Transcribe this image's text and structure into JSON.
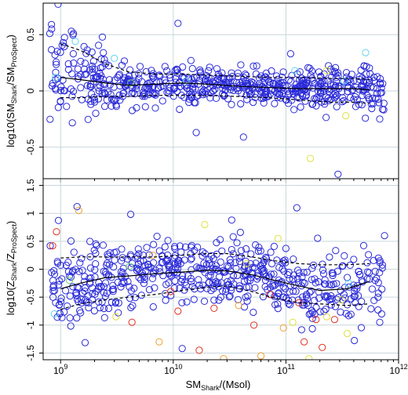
{
  "chart_data": [
    {
      "type": "scatter",
      "panel": "top",
      "ylabel": "log10(SM_Shark/SM_ProSpect)",
      "ylabel_parts": {
        "prefix": "log10(SM",
        "sub1": "Shark",
        "mid": "/SM",
        "sub2": "ProSpect",
        "suffix": ")"
      },
      "xlim": [
        700000000.0,
        1000000000000.0
      ],
      "ylim": [
        -0.78,
        0.78
      ],
      "xscale": "log",
      "yticks": [
        -0.5,
        0,
        0.5
      ],
      "ytick_labels": [
        "-0.5",
        "0",
        "0.5"
      ],
      "grid": true,
      "median_line": {
        "x": [
          1000000000.0,
          1500000000.0,
          2500000000.0,
          4000000000.0,
          7000000000.0,
          12000000000.0,
          20000000000.0,
          40000000000.0,
          70000000000.0,
          130000000000.0,
          250000000000.0,
          400000000000.0,
          550000000000.0
        ],
        "y": [
          0.12,
          0.1,
          0.07,
          0.05,
          0.06,
          0.07,
          0.06,
          0.04,
          0.03,
          0.02,
          0.02,
          0.02,
          0.01
        ]
      },
      "upper_line": {
        "x": [
          1000000000.0,
          1500000000.0,
          2500000000.0,
          4000000000.0,
          7000000000.0,
          12000000000.0,
          20000000000.0,
          40000000000.0,
          70000000000.0,
          130000000000.0,
          250000000000.0,
          400000000000.0,
          550000000000.0
        ],
        "y": [
          0.42,
          0.36,
          0.24,
          0.17,
          0.15,
          0.15,
          0.14,
          0.13,
          0.12,
          0.12,
          0.11,
          0.11,
          0.1
        ]
      },
      "lower_line": {
        "x": [
          1000000000.0,
          1500000000.0,
          2500000000.0,
          4000000000.0,
          7000000000.0,
          12000000000.0,
          20000000000.0,
          40000000000.0,
          70000000000.0,
          130000000000.0,
          250000000000.0,
          400000000000.0,
          550000000000.0
        ],
        "y": [
          -0.06,
          -0.06,
          -0.05,
          -0.05,
          -0.04,
          -0.04,
          -0.04,
          -0.05,
          -0.06,
          -0.08,
          -0.1,
          -0.1,
          -0.11
        ]
      },
      "highlight_points": [
        {
          "x": 1350000000.0,
          "y": 0.44,
          "c": "cyan"
        },
        {
          "x": 3000000000.0,
          "y": 0.29,
          "c": "cyan"
        },
        {
          "x": 4200000000.0,
          "y": 0.07,
          "c": "green"
        },
        {
          "x": 13000000000.0,
          "y": 0.09,
          "c": "cyan"
        },
        {
          "x": 120000000000.0,
          "y": 0.18,
          "c": "cyan"
        },
        {
          "x": 230000000000.0,
          "y": 0.18,
          "c": "yellow"
        },
        {
          "x": 330000000000.0,
          "y": 0.09,
          "c": "cyan"
        },
        {
          "x": 340000000000.0,
          "y": -0.22,
          "c": "yellow"
        },
        {
          "x": 510000000000.0,
          "y": 0.34,
          "c": "cyan"
        },
        {
          "x": 165000000000.0,
          "y": -0.6,
          "c": "yellow"
        },
        {
          "x": 900000000.0,
          "y": 0.12,
          "c": "cyan"
        }
      ],
      "extreme_points": [
        {
          "x": 830000000.0,
          "y": 0.59
        },
        {
          "x": 950000000.0,
          "y": 0.77
        },
        {
          "x": 1300000000.0,
          "y": 0.51
        },
        {
          "x": 11000000000.0,
          "y": 0.6
        },
        {
          "x": 16000000000.0,
          "y": -0.37
        },
        {
          "x": 42000000000.0,
          "y": -0.41
        },
        {
          "x": 110000000000.0,
          "y": 0.33
        },
        {
          "x": 290000000000.0,
          "y": -0.74
        },
        {
          "x": 680000000000.0,
          "y": -0.25
        }
      ]
    },
    {
      "type": "scatter",
      "panel": "bottom",
      "ylabel": "log10(Z_Shark/Z_ProSpect)",
      "ylabel_parts": {
        "prefix": "log10(Z",
        "sub1": "Shark",
        "mid": "/Z",
        "sub2": "ProSpect",
        "suffix": ")"
      },
      "xlabel": "SM_Shark/(Msol)",
      "xlabel_parts": {
        "prefix": "SM",
        "sub1": "Shark",
        "suffix": "/(Msol)"
      },
      "xlim": [
        700000000.0,
        1000000000000.0
      ],
      "ylim": [
        -1.62,
        1.62
      ],
      "xscale": "log",
      "yticks": [
        -1.5,
        -1,
        -0.5,
        0,
        0.5,
        1,
        1.5
      ],
      "ytick_labels": [
        "-1.5",
        "-1",
        "-0.5",
        "0",
        "0.5",
        "1",
        "1.5"
      ],
      "xticks": [
        1000000000.0,
        10000000000.0,
        100000000000.0,
        1000000000000.0
      ],
      "xtick_labels": [
        {
          "base": "10",
          "exp": "9"
        },
        {
          "base": "10",
          "exp": "10"
        },
        {
          "base": "10",
          "exp": "11"
        },
        {
          "base": "10",
          "exp": "12"
        }
      ],
      "grid": true,
      "median_line": {
        "x": [
          1000000000.0,
          1500000000.0,
          2500000000.0,
          4000000000.0,
          7000000000.0,
          12000000000.0,
          20000000000.0,
          30000000000.0,
          50000000000.0,
          80000000000.0,
          130000000000.0,
          200000000000.0,
          350000000000.0,
          550000000000.0
        ],
        "y": [
          -0.35,
          -0.25,
          -0.15,
          -0.12,
          -0.08,
          -0.05,
          -0.02,
          -0.03,
          -0.1,
          -0.2,
          -0.3,
          -0.38,
          -0.35,
          -0.22
        ]
      },
      "upper_line": {
        "x": [
          1000000000.0,
          1500000000.0,
          2500000000.0,
          4000000000.0,
          7000000000.0,
          12000000000.0,
          20000000000.0,
          30000000000.0,
          50000000000.0,
          80000000000.0,
          130000000000.0,
          200000000000.0,
          350000000000.0,
          550000000000.0
        ],
        "y": [
          0.2,
          0.22,
          0.22,
          0.22,
          0.22,
          0.25,
          0.28,
          0.28,
          0.22,
          0.15,
          0.1,
          0.08,
          0.08,
          0.1
        ]
      },
      "lower_line": {
        "x": [
          1000000000.0,
          1500000000.0,
          2500000000.0,
          4000000000.0,
          7000000000.0,
          12000000000.0,
          20000000000.0,
          30000000000.0,
          50000000000.0,
          80000000000.0,
          130000000000.0,
          200000000000.0,
          350000000000.0,
          550000000000.0
        ],
        "y": [
          -0.72,
          -0.62,
          -0.55,
          -0.5,
          -0.45,
          -0.38,
          -0.32,
          -0.3,
          -0.4,
          -0.52,
          -0.6,
          -0.62,
          -0.65,
          -0.62
        ]
      },
      "highlight_points": [
        {
          "x": 850000000.0,
          "y": 0.42,
          "c": "red"
        },
        {
          "x": 920000000.0,
          "y": 0.67,
          "c": "red"
        },
        {
          "x": 880000000.0,
          "y": -0.8,
          "c": "cyan"
        },
        {
          "x": 1450000000.0,
          "y": 1.05,
          "c": "orange"
        },
        {
          "x": 1200000000.0,
          "y": -0.2,
          "c": "green"
        },
        {
          "x": 3100000000.0,
          "y": -0.85,
          "c": "yellow"
        },
        {
          "x": 4100000000.0,
          "y": 0.05,
          "c": "green"
        },
        {
          "x": 4300000000.0,
          "y": -0.95,
          "c": "red"
        },
        {
          "x": 6600000000.0,
          "y": 0.25,
          "c": "orange"
        },
        {
          "x": 7500000000.0,
          "y": -1.3,
          "c": "orange"
        },
        {
          "x": 9500000000.0,
          "y": -0.4,
          "c": "red"
        },
        {
          "x": 11000000000.0,
          "y": -0.75,
          "c": "red"
        },
        {
          "x": 17000000000.0,
          "y": -1.45,
          "c": "red"
        },
        {
          "x": 19000000000.0,
          "y": 0.8,
          "c": "yellow"
        },
        {
          "x": 23000000000.0,
          "y": -0.7,
          "c": "red"
        },
        {
          "x": 28000000000.0,
          "y": -1.6,
          "c": "orange"
        },
        {
          "x": 38000000000.0,
          "y": -0.65,
          "c": "orange"
        },
        {
          "x": 45000000000.0,
          "y": 0.1,
          "c": "yellow"
        },
        {
          "x": 52000000000.0,
          "y": -1.0,
          "c": "red"
        },
        {
          "x": 60000000000.0,
          "y": -1.55,
          "c": "orange"
        },
        {
          "x": 72000000000.0,
          "y": -0.45,
          "c": "red"
        },
        {
          "x": 85000000000.0,
          "y": 0.55,
          "c": "yellow"
        },
        {
          "x": 95000000000.0,
          "y": -1.05,
          "c": "orange"
        },
        {
          "x": 115000000000.0,
          "y": -0.95,
          "c": "yellow"
        },
        {
          "x": 130000000000.0,
          "y": -0.6,
          "c": "red"
        },
        {
          "x": 145000000000.0,
          "y": -1.3,
          "c": "red"
        },
        {
          "x": 160000000000.0,
          "y": -1.6,
          "c": "yellow"
        },
        {
          "x": 185000000000.0,
          "y": -0.9,
          "c": "red"
        },
        {
          "x": 210000000000.0,
          "y": -1.4,
          "c": "red"
        },
        {
          "x": 230000000000.0,
          "y": -0.85,
          "c": "yellow"
        },
        {
          "x": 270000000000.0,
          "y": -0.9,
          "c": "red"
        },
        {
          "x": 310000000000.0,
          "y": -0.55,
          "c": "yellow"
        },
        {
          "x": 350000000000.0,
          "y": -1.15,
          "c": "yellow"
        },
        {
          "x": 360000000000.0,
          "y": -0.25,
          "c": "cyan"
        }
      ],
      "extreme_points": [
        {
          "x": 1400000000.0,
          "y": 1.12
        },
        {
          "x": 33000000000.0,
          "y": 0.88
        },
        {
          "x": 125000000000.0,
          "y": 1.1
        },
        {
          "x": 12000000000.0,
          "y": -1.42
        },
        {
          "x": 750000000000.0,
          "y": 0.6
        },
        {
          "x": 680000000000.0,
          "y": -0.95
        }
      ]
    }
  ]
}
